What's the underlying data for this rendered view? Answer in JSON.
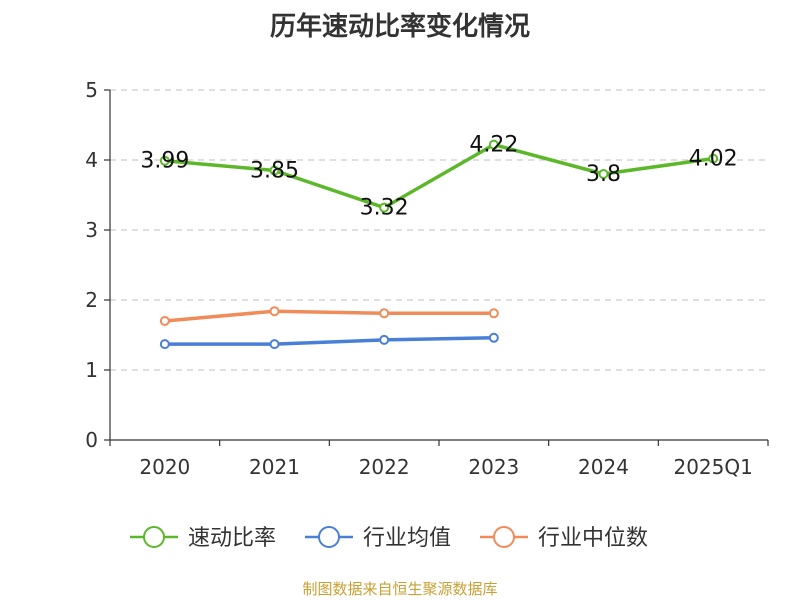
{
  "chart_data": {
    "type": "line",
    "title": "历年速动比率变化情况",
    "categories": [
      "2020",
      "2021",
      "2022",
      "2023",
      "2024",
      "2025Q1"
    ],
    "y_ticks": [
      "0",
      "1",
      "2",
      "3",
      "4",
      "5"
    ],
    "ylim": [
      0,
      5
    ],
    "grid": true,
    "legend_position": "bottom",
    "series": [
      {
        "name": "速动比率",
        "color": "#5cb82a",
        "show_labels": true,
        "values": [
          3.99,
          3.85,
          3.32,
          4.22,
          3.8,
          4.02
        ],
        "labels": [
          "3.99",
          "3.85",
          "3.32",
          "4.22",
          "3.8",
          "4.02"
        ]
      },
      {
        "name": "行业均值",
        "color": "#4a7fd8",
        "show_labels": false,
        "values": [
          1.37,
          1.37,
          1.43,
          1.46,
          null,
          null
        ]
      },
      {
        "name": "行业中位数",
        "color": "#f08c5a",
        "show_labels": false,
        "values": [
          1.7,
          1.84,
          1.81,
          1.81,
          null,
          null
        ]
      }
    ]
  },
  "source_note": "制图数据来自恒生聚源数据库"
}
